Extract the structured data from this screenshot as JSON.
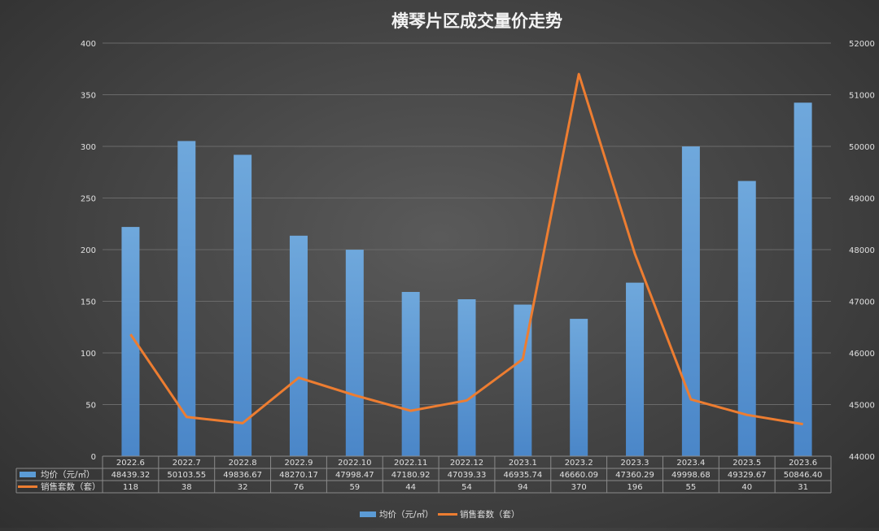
{
  "chart_data": {
    "type": "bar",
    "title": "横琴片区成交量价走势",
    "categories": [
      "2022.6",
      "2022.7",
      "2022.8",
      "2022.9",
      "2022.10",
      "2022.11",
      "2022.12",
      "2023.1",
      "2023.2",
      "2023.3",
      "2023.4",
      "2023.5",
      "2023.6"
    ],
    "series": [
      {
        "name": "均价（元/㎡）",
        "type": "bar",
        "axis": "right",
        "color": "#5b9bd5",
        "values": [
          48439.32,
          50103.55,
          49836.67,
          48270.17,
          47998.47,
          47180.92,
          47039.33,
          46935.74,
          46660.09,
          47360.29,
          49998.68,
          49329.67,
          50846.4
        ],
        "labels": [
          "48439.32",
          "50103.55",
          "49836.67",
          "48270.17",
          "47998.47",
          "47180.92",
          "47039.33",
          "46935.74",
          "46660.09",
          "47360.29",
          "49998.68",
          "49329.67",
          "50846.40"
        ]
      },
      {
        "name": "销售套数（套）",
        "type": "line",
        "axis": "left",
        "color": "#ed7d31",
        "values": [
          118,
          38,
          32,
          76,
          59,
          44,
          54,
          94,
          370,
          196,
          55,
          40,
          31
        ],
        "labels": [
          "118",
          "38",
          "32",
          "76",
          "59",
          "44",
          "54",
          "94",
          "370",
          "196",
          "55",
          "40",
          "31"
        ]
      }
    ],
    "y_left": {
      "min": 0,
      "max": 400,
      "ticks": [
        "0",
        "50",
        "100",
        "150",
        "200",
        "250",
        "300",
        "350",
        "400"
      ]
    },
    "y_right": {
      "min": 44000,
      "max": 52000,
      "ticks": [
        "44000",
        "45000",
        "46000",
        "47000",
        "48000",
        "49000",
        "50000",
        "51000",
        "52000"
      ]
    },
    "grid": true,
    "legend": "bottom",
    "data_table": true
  }
}
